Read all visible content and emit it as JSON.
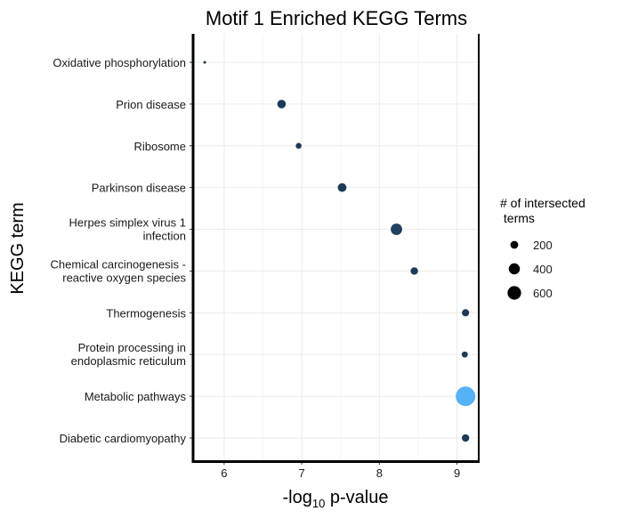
{
  "chart_data": {
    "type": "scatter",
    "title": "Motif 1 Enriched KEGG Terms",
    "xlabel_main": "-log",
    "xlabel_sub": "10",
    "xlabel_rest": " p-value",
    "ylabel": "KEGG term",
    "xlim": [
      5.6,
      9.28
    ],
    "xticks": [
      6,
      7,
      8,
      9
    ],
    "grid": true,
    "legend": {
      "title": [
        "# of intersected",
        " terms"
      ],
      "position": "right",
      "entries": [
        {
          "label": "200",
          "size": 200
        },
        {
          "label": "400",
          "size": 400
        },
        {
          "label": "600",
          "size": 600
        }
      ]
    },
    "points": [
      {
        "term": [
          "Oxidative phosphorylation"
        ],
        "x": 5.75,
        "size": 25,
        "color": "#1d3a56"
      },
      {
        "term": [
          "Prion disease"
        ],
        "x": 6.74,
        "size": 240,
        "color": "#1d3a56"
      },
      {
        "term": [
          "Ribosome"
        ],
        "x": 6.96,
        "size": 110,
        "color": "#1d3a56"
      },
      {
        "term": [
          "Parkinson disease"
        ],
        "x": 7.52,
        "size": 250,
        "color": "#1d3a56"
      },
      {
        "term": [
          "Herpes simplex virus 1",
          "infection"
        ],
        "x": 8.22,
        "size": 430,
        "color": "#21405f"
      },
      {
        "term": [
          "Chemical carcinogenesis -",
          "reactive oxygen species"
        ],
        "x": 8.45,
        "size": 180,
        "color": "#1d3a56"
      },
      {
        "term": [
          "Thermogenesis"
        ],
        "x": 9.11,
        "size": 170,
        "color": "#1d3a56"
      },
      {
        "term": [
          "Protein processing in",
          "endoplasmic reticulum"
        ],
        "x": 9.1,
        "size": 120,
        "color": "#1d3a56"
      },
      {
        "term": [
          "Metabolic pathways"
        ],
        "x": 9.11,
        "size": 1250,
        "color": "#56b1f7"
      },
      {
        "term": [
          "Diabetic cardiomyopathy"
        ],
        "x": 9.11,
        "size": 180,
        "color": "#1d3a56"
      }
    ]
  }
}
